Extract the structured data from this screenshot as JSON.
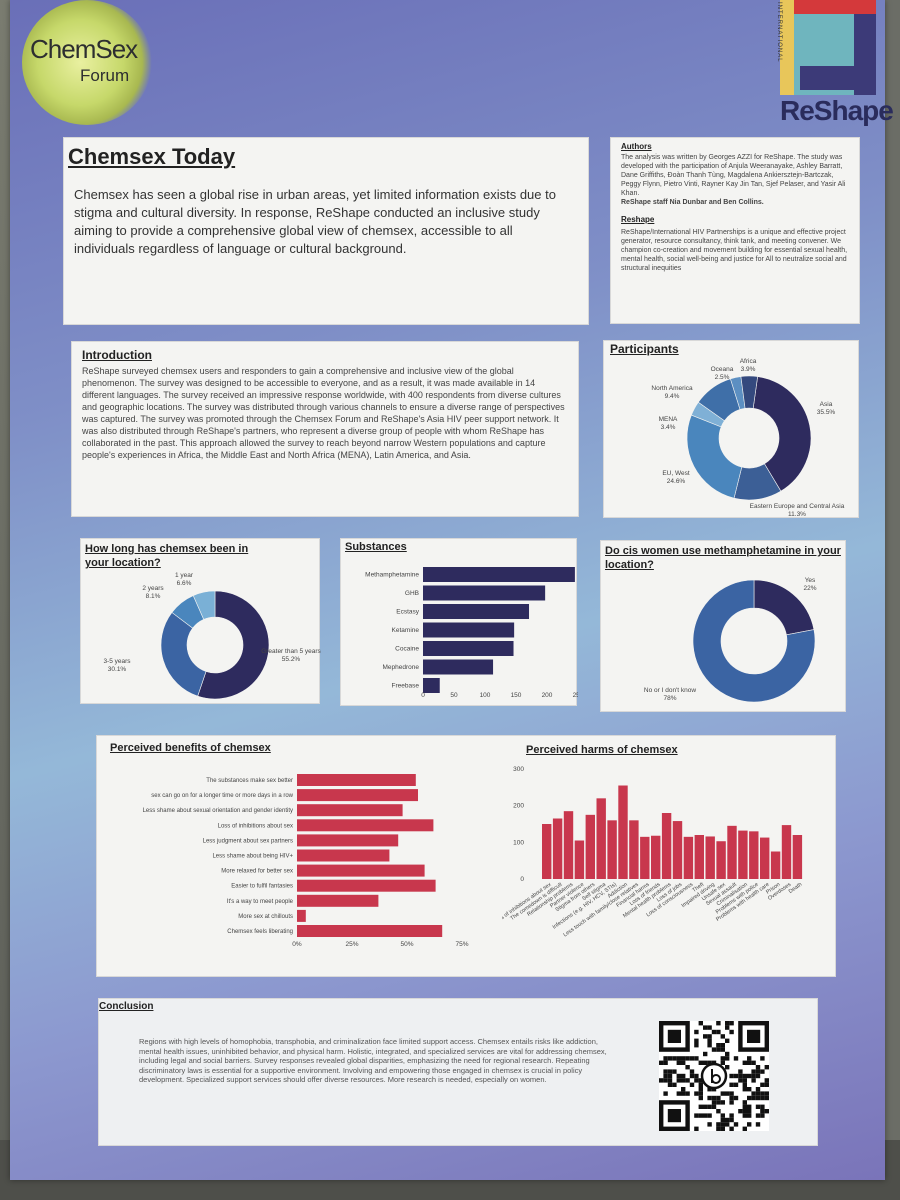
{
  "logo": {
    "line1": "ChemSex",
    "line2": "Forum"
  },
  "reshape": {
    "name": "ReShape",
    "vertical": "INTERNATIONAL"
  },
  "header": {
    "title": "Chemsex Today",
    "body": "Chemsex has seen a global rise in urban areas, yet limited information exists due to stigma and cultural diversity. In response, ReShape conducted an inclusive study aiming to provide a comprehensive global view of chemsex, accessible to all individuals regardless of language or cultural background."
  },
  "authors": {
    "title": "Authors",
    "body": "The analysis was written by Georges AZZI for ReShape. The study was developed with the participation of Anjula Weeranayake, Ashley Barratt, Dane Griffiths, Đoàn Thanh Tùng, Magdalena Ankiersztejn-Bartczak, Peggy Flynn, Pietro Vinti, Rayner Kay Jin Tan, Sjef Pelaser, and Yasir Ali Khan.",
    "staff": "ReShape staff Nia Dunbar and Ben Collins."
  },
  "reshape_box": {
    "title": "Reshape",
    "body": "ReShape/International HIV Partnerships is a unique and effective project generator, resource consultancy, think tank, and meeting convener. We champion co-creation and movement building for essential sexual health, mental health, social well-being and justice for All to neutralize social and structural inequities"
  },
  "introduction": {
    "title": "Introduction",
    "body": "ReShape surveyed chemsex users and responders to gain a comprehensive and inclusive view of the global phenomenon. The survey was designed to be accessible to everyone, and as a result, it was made available in 14 different languages. The survey received an impressive response worldwide, with 400 respondents from diverse cultures and geographic locations. The survey was distributed through various channels to ensure a diverse range of perspectives was captured. The survey was promoted through the Chemsex Forum and ReShape's Asia HIV peer support network. It was also distributed through ReShape's partners, who represent a diverse group of people with whom ReShape has collaborated in the past. This approach allowed the survey to reach beyond narrow Western populations and capture people's experiences in Africa, the Middle East and North Africa (MENA), Latin America, and Asia."
  },
  "participants": {
    "title": "Participants",
    "slices": [
      {
        "name": "Asia",
        "value": 35.5,
        "label": "35.5%",
        "color": "#2e2b5e"
      },
      {
        "name": "Eastern Europe and Central Asia",
        "value": 11.3,
        "label": "11.3%",
        "color": "#3c5f96"
      },
      {
        "name": "EU, West",
        "value": 24.6,
        "label": "24.6%",
        "color": "#4a86bd"
      },
      {
        "name": "MENA",
        "value": 3.4,
        "label": "3.4%",
        "color": "#7fb0d6"
      },
      {
        "name": "North America",
        "value": 9.4,
        "label": "9.4%",
        "color": "#3f6fa8"
      },
      {
        "name": "Oceana",
        "value": 2.5,
        "label": "2.5%",
        "color": "#5c8fc2"
      },
      {
        "name": "Africa",
        "value": 3.9,
        "label": "3.9%",
        "color": "#34497e"
      }
    ]
  },
  "duration": {
    "title": "How long has chemsex been in your location?",
    "slices": [
      {
        "name": "Greater than 5 years",
        "value": 55.2,
        "label": "55.2%",
        "color": "#2e2b5e"
      },
      {
        "name": "3-5 years",
        "value": 30.1,
        "label": "30.1%",
        "color": "#3b64a3"
      },
      {
        "name": "2 years",
        "value": 8.1,
        "label": "8.1%",
        "color": "#4a86bd"
      },
      {
        "name": "1 year",
        "value": 6.6,
        "label": "6.6%",
        "color": "#7ab0d6"
      }
    ]
  },
  "substances": {
    "title": "Substances",
    "categories": [
      "Methamphetamine",
      "GHB",
      "Ecstasy",
      "Ketamine",
      "Cocaine",
      "Mephedrone",
      "Freebase"
    ],
    "values": [
      245,
      197,
      171,
      147,
      146,
      113,
      27
    ],
    "ticks": [
      "0",
      "50",
      "100",
      "150",
      "200",
      "250"
    ],
    "color": "#2e2b5e"
  },
  "ciswomen": {
    "title": "Do cis women use methamphetamine in your location?",
    "slices": [
      {
        "name": "Yes",
        "value": 22,
        "label": "22%",
        "color": "#2e2b5e"
      },
      {
        "name": "No or I don't know",
        "value": 78,
        "label": "78%",
        "color": "#3b64a3"
      }
    ]
  },
  "benefits": {
    "title": "Perceived benefits of chemsex",
    "categories": [
      "The substances make sex better",
      "sex can go on for a longer time or more days in a row",
      "Less shame about sexual orientation and gender identity",
      "Loss of inhibitions about sex",
      "Less judgment about sex partners",
      "Less shame about being HIV+",
      "More relaxed for better sex",
      "Easier to fulfil fantasies",
      "It's a way to meet people",
      "More sex at chillouts",
      "Chemsex feels liberating"
    ],
    "values": [
      54,
      55,
      48,
      62,
      46,
      42,
      58,
      63,
      37,
      4,
      66
    ],
    "ticks": [
      "0%",
      "25%",
      "50%",
      "75%"
    ],
    "color": "#c8374d"
  },
  "harms": {
    "title": "Perceived harms of chemsex",
    "categories": [
      "Loss of inhibitions about sex",
      "The comedown is difficult",
      "Relationship problems",
      "Partner violence",
      "Stigma from others",
      "Self stigma",
      "Infections (e.g. HIV, HCV, STIs)",
      "Addiction",
      "Less touch with family/close relatives",
      "Financial harms",
      "Loss of friends",
      "Mental health problems",
      "Loss of jobs",
      "Loss of consciousness",
      "Theft",
      "Impaired driving",
      "Unsafe sex",
      "Sexual assault",
      "Criminalisation",
      "Problems with police",
      "Problems with health care",
      "Prison",
      "Overdoses",
      "Death"
    ],
    "values": [
      150,
      165,
      185,
      105,
      175,
      220,
      160,
      255,
      160,
      115,
      118,
      180,
      158,
      115,
      120,
      116,
      103,
      145,
      132,
      130,
      113,
      75,
      147,
      120
    ],
    "ticks": [
      "0",
      "100",
      "200",
      "300"
    ],
    "color": "#c8374d"
  },
  "conclusion": {
    "title": "Conclusion",
    "body": "Regions with high levels of homophobia, transphobia, and criminalization face limited support access. Chemsex entails risks like addiction, mental health issues, uninhibited behavior, and physical harm. Holistic, integrated, and specialized services are vital for addressing chemsex, including legal and social barriers. Survey responses revealed global disparities, emphasizing the need for regional research. Repeating discriminatory laws is essential for a supportive environment. Involving and empowering those engaged in chemsex is crucial in policy development. Specialized support services should offer diverse resources. More research is needed, especially on women."
  }
}
